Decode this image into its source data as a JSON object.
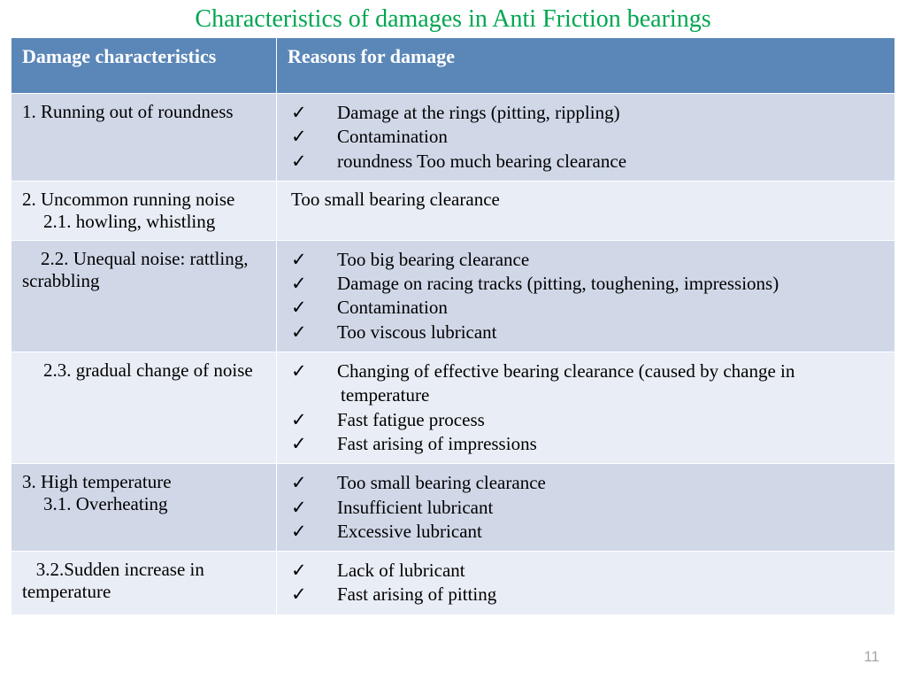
{
  "title": "Characteristics of damages in  Anti Friction bearings",
  "columns": {
    "left": "Damage characteristics",
    "right": "Reasons for damage"
  },
  "rows": [
    {
      "dc": [
        {
          "text": "1. Running out of roundness",
          "indent": false
        }
      ],
      "reason_type": "list",
      "reasons": [
        "Damage at the rings (pitting, rippling)",
        "Contamination",
        "roundness   Too much bearing clearance"
      ],
      "shade": "a"
    },
    {
      "dc": [
        {
          "text": "2. Uncommon running noise",
          "indent": false
        },
        {
          "text": "2.1. howling, whistling",
          "indent": true
        }
      ],
      "reason_type": "plain",
      "reason_text": "Too small bearing clearance",
      "shade": "b"
    },
    {
      "dc": [
        {
          "text": "    2.2. Unequal noise: rattling, scrabbling",
          "indent": false
        }
      ],
      "reason_type": "list",
      "reasons": [
        "Too big bearing clearance",
        "Damage on racing tracks (pitting, toughening, impressions)",
        "Contamination",
        "Too viscous lubricant"
      ],
      "shade": "a"
    },
    {
      "dc": [
        {
          "text": "2.3. gradual change of noise",
          "indent": true
        }
      ],
      "reason_type": "list",
      "reasons": [
        "Changing of effective bearing clearance (caused by change in temperature",
        "Fast fatigue process",
        "Fast arising of impressions"
      ],
      "shade": "b"
    },
    {
      "dc": [
        {
          "text": "3. High temperature",
          "indent": false
        },
        {
          "text": "3.1. Overheating",
          "indent": true
        }
      ],
      "reason_type": "list",
      "reasons": [
        "Too small bearing clearance",
        "Insufficient lubricant",
        "Excessive lubricant"
      ],
      "shade": "a"
    },
    {
      "dc": [
        {
          "text": "   3.2.Sudden increase in temperature",
          "indent": false
        }
      ],
      "reason_type": "list",
      "reasons": [
        "Lack of lubricant",
        "Fast arising of pitting"
      ],
      "shade": "b"
    }
  ],
  "page_number": "11"
}
